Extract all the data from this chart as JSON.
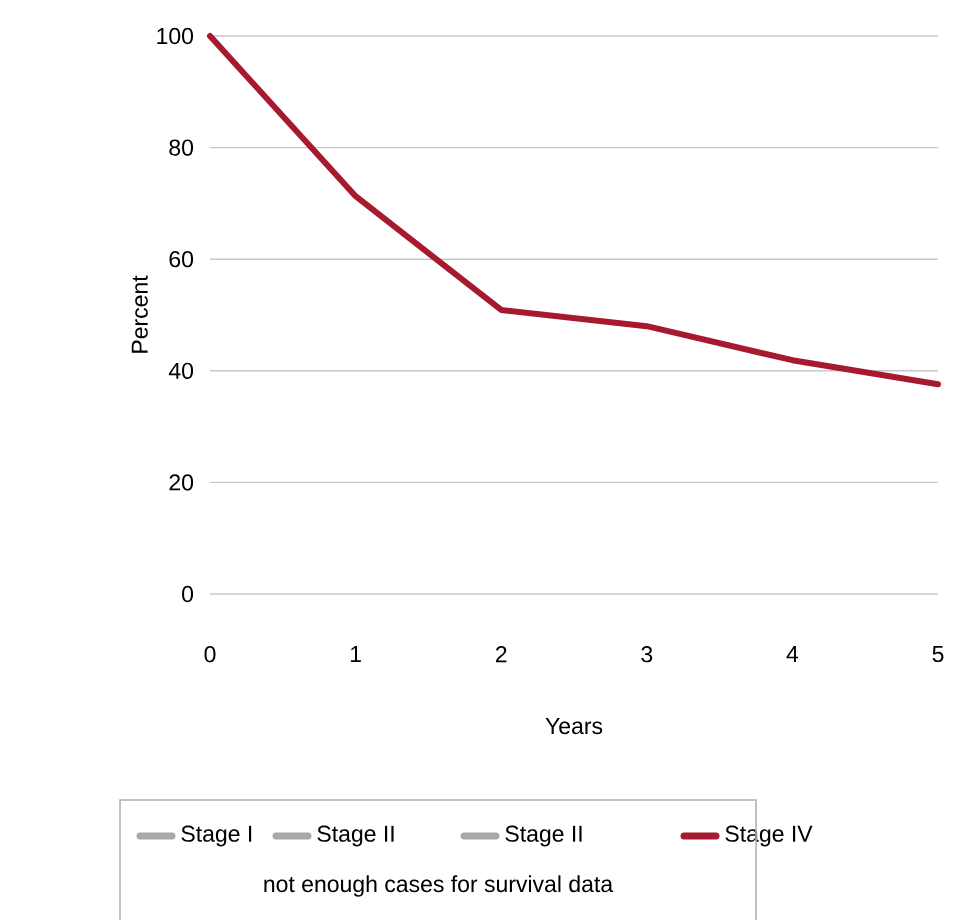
{
  "chart_data": {
    "type": "line",
    "xlabel": "Years",
    "ylabel": "Percent",
    "x": [
      0,
      1,
      2,
      3,
      4,
      5
    ],
    "xlim": [
      0,
      5
    ],
    "xticks": [
      0,
      1,
      2,
      3,
      4,
      5
    ],
    "ylim": [
      0,
      100
    ],
    "yticks": [
      0,
      20,
      40,
      60,
      80,
      100
    ],
    "grid": "y",
    "legend": "bottom",
    "marker": "none",
    "line_style": "solid",
    "series": [
      {
        "name": "Stage I",
        "color": "#a7a9ac",
        "values": [
          null,
          null,
          null,
          null,
          null,
          null
        ]
      },
      {
        "name": "Stage II",
        "color": "#a7a9ac",
        "values": [
          null,
          null,
          null,
          null,
          null,
          null
        ]
      },
      {
        "name": "Stage II",
        "color": "#a7a9ac",
        "values": [
          null,
          null,
          null,
          null,
          null,
          null
        ]
      },
      {
        "name": "Stage IV",
        "color": "#a6192e",
        "values": [
          100,
          71.3,
          50.9,
          48,
          41.9,
          37.6
        ]
      }
    ],
    "annotations": [
      "not enough cases for survival data"
    ]
  }
}
